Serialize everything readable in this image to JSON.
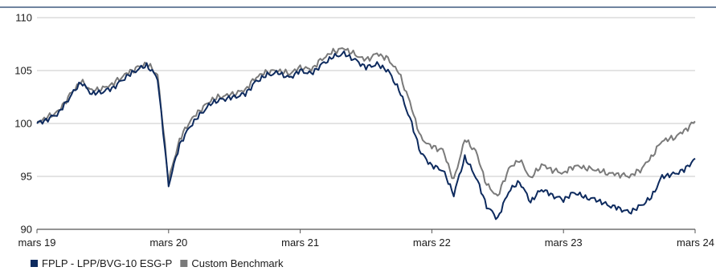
{
  "chart_data": {
    "type": "line",
    "title": "",
    "xlabel": "",
    "ylabel": "",
    "ylim": [
      90,
      110
    ],
    "y_ticks": [
      "110",
      "105",
      "100",
      "95",
      "90"
    ],
    "x_ticks": [
      "mars 19",
      "mars 20",
      "mars 21",
      "mars 22",
      "mars 23",
      "mars 24"
    ],
    "grid": "horizontal",
    "legend_position": "bottom-left",
    "series": [
      {
        "name": "FPLP - LPP/BVG-10 ESG-P",
        "color": "#0d2a5e",
        "x": [
          "2019-03",
          "2019-04",
          "2019-05",
          "2019-06",
          "2019-07",
          "2019-08",
          "2019-09",
          "2019-10",
          "2019-11",
          "2019-12",
          "2020-01",
          "2020-02",
          "2020-03",
          "2020-04",
          "2020-05",
          "2020-06",
          "2020-07",
          "2020-08",
          "2020-09",
          "2020-10",
          "2020-11",
          "2020-12",
          "2021-01",
          "2021-02",
          "2021-03",
          "2021-04",
          "2021-05",
          "2021-06",
          "2021-07",
          "2021-08",
          "2021-09",
          "2021-10",
          "2021-11",
          "2021-12",
          "2022-01",
          "2022-02",
          "2022-03",
          "2022-04",
          "2022-05",
          "2022-06",
          "2022-07",
          "2022-08",
          "2022-09",
          "2022-10",
          "2022-11",
          "2022-12",
          "2023-01",
          "2023-02",
          "2023-03",
          "2023-04",
          "2023-05",
          "2023-06",
          "2023-07",
          "2023-08",
          "2023-09",
          "2023-10",
          "2023-11",
          "2023-12",
          "2024-01",
          "2024-02",
          "2024-03"
        ],
        "values": [
          100.0,
          100.4,
          101.0,
          102.5,
          103.9,
          102.8,
          103.0,
          103.4,
          104.3,
          105.0,
          105.5,
          104.3,
          94.2,
          98.0,
          99.8,
          101.0,
          102.0,
          102.3,
          102.5,
          102.8,
          104.0,
          104.6,
          104.8,
          104.3,
          105.0,
          104.7,
          105.6,
          106.3,
          106.6,
          106.0,
          105.3,
          105.6,
          105.0,
          103.2,
          100.5,
          97.2,
          96.0,
          95.6,
          93.3,
          96.8,
          95.0,
          92.2,
          91.0,
          93.6,
          94.5,
          92.6,
          93.8,
          93.2,
          92.8,
          93.5,
          93.0,
          92.8,
          92.3,
          92.0,
          91.6,
          92.2,
          93.0,
          95.0,
          95.2,
          95.6,
          96.7
        ]
      },
      {
        "name": "Custom Benchmark",
        "color": "#7a7a7a",
        "x": [
          "2019-03",
          "2019-04",
          "2019-05",
          "2019-06",
          "2019-07",
          "2019-08",
          "2019-09",
          "2019-10",
          "2019-11",
          "2019-12",
          "2020-01",
          "2020-02",
          "2020-03",
          "2020-04",
          "2020-05",
          "2020-06",
          "2020-07",
          "2020-08",
          "2020-09",
          "2020-10",
          "2020-11",
          "2020-12",
          "2021-01",
          "2021-02",
          "2021-03",
          "2021-04",
          "2021-05",
          "2021-06",
          "2021-07",
          "2021-08",
          "2021-09",
          "2021-10",
          "2021-11",
          "2021-12",
          "2022-01",
          "2022-02",
          "2022-03",
          "2022-04",
          "2022-05",
          "2022-06",
          "2022-07",
          "2022-08",
          "2022-09",
          "2022-10",
          "2022-11",
          "2022-12",
          "2023-01",
          "2023-02",
          "2023-03",
          "2023-04",
          "2023-05",
          "2023-06",
          "2023-07",
          "2023-08",
          "2023-09",
          "2023-10",
          "2023-11",
          "2023-12",
          "2024-01",
          "2024-02",
          "2024-03"
        ],
        "values": [
          100.1,
          100.6,
          101.2,
          102.7,
          104.0,
          103.1,
          103.3,
          103.8,
          104.6,
          105.2,
          105.7,
          104.6,
          94.6,
          98.5,
          100.3,
          101.4,
          102.3,
          102.6,
          102.8,
          103.2,
          104.4,
          104.9,
          105.0,
          104.7,
          105.3,
          105.1,
          106.1,
          106.8,
          107.1,
          106.5,
          106.0,
          106.6,
          106.1,
          104.8,
          102.0,
          98.6,
          97.8,
          97.5,
          94.6,
          98.5,
          97.4,
          94.2,
          93.1,
          95.7,
          96.6,
          94.8,
          96.1,
          95.6,
          95.3,
          96.0,
          95.8,
          95.6,
          95.3,
          95.2,
          95.0,
          95.6,
          96.8,
          98.4,
          98.6,
          99.3,
          100.2
        ]
      }
    ]
  }
}
